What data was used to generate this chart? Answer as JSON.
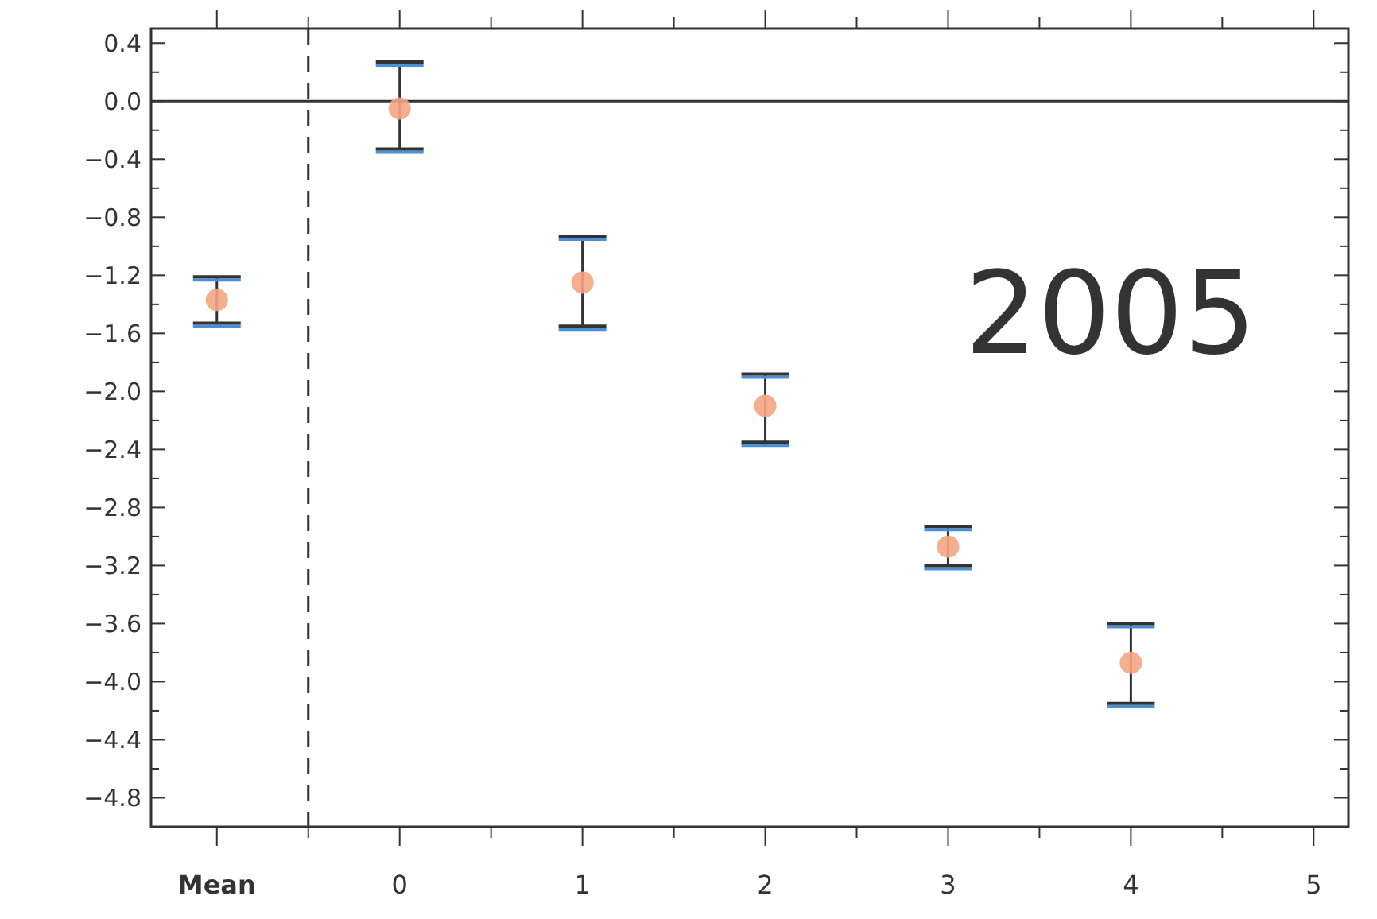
{
  "chart_data": {
    "type": "scatter",
    "x": [
      -1,
      0,
      1,
      2,
      3,
      4
    ],
    "series": [
      {
        "color": "#f4a582",
        "values": [
          -1.37,
          -0.05,
          -1.25,
          -2.1,
          -3.07,
          -3.87
        ],
        "errors": [
          [
            -1.53,
            -1.21
          ],
          [
            -0.33,
            0.27
          ],
          [
            -1.55,
            -0.93
          ],
          [
            -2.35,
            -1.88
          ],
          [
            -3.2,
            -2.93
          ],
          [
            -4.15,
            -3.6
          ]
        ]
      }
    ],
    "marker": "circle",
    "xlim": [
      -1.36,
      5.19
    ],
    "ylim": [
      -5.0,
      0.5
    ],
    "xticks": [
      {
        "value": -1,
        "label": "Mean"
      },
      {
        "value": -0.5,
        "label": null
      },
      0,
      {
        "value": 0.5,
        "label": null
      },
      1,
      {
        "value": 1.5,
        "label": null
      },
      2,
      {
        "value": 2.5,
        "label": null
      },
      3,
      {
        "value": 3.5,
        "label": null
      },
      4,
      {
        "value": 4.5,
        "label": null
      },
      5
    ],
    "yticks": [
      {
        "value": 0.4,
        "label": "0.4"
      },
      {
        "value": 0.2,
        "label": null
      },
      {
        "value": 0,
        "label": "0.0"
      },
      {
        "value": -0.2,
        "label": null
      },
      {
        "value": -0.4,
        "label": "−0.4"
      },
      {
        "value": -0.6,
        "label": null
      },
      {
        "value": -0.8,
        "label": "−0.8"
      },
      {
        "value": -1.0,
        "label": null
      },
      {
        "value": -1.2,
        "label": "−1.2"
      },
      {
        "value": -1.4,
        "label": null
      },
      {
        "value": -1.6,
        "label": "−1.6"
      },
      {
        "value": -1.8,
        "label": null
      },
      {
        "value": -2.0,
        "label": "−2.0"
      },
      {
        "value": -2.2,
        "label": null
      },
      {
        "value": -2.4,
        "label": "−2.4"
      },
      {
        "value": -2.6,
        "label": null
      },
      {
        "value": -2.8,
        "label": "−2.8"
      },
      {
        "value": -3.0,
        "label": null
      },
      {
        "value": -3.2,
        "label": "−3.2"
      },
      {
        "value": -3.4,
        "label": null
      },
      {
        "value": -3.6,
        "label": "−3.6"
      },
      {
        "value": -3.8,
        "label": null
      },
      {
        "value": -4.0,
        "label": "−4.0"
      },
      {
        "value": -4.2,
        "label": null
      },
      {
        "value": -4.4,
        "label": "−4.4"
      },
      {
        "value": -4.6,
        "label": null
      },
      {
        "value": -4.8,
        "label": "−4.8"
      }
    ],
    "ref_lines": [
      {
        "axis": "y",
        "value": 0,
        "line_style": "solid",
        "color": "#333333"
      },
      {
        "axis": "x",
        "value": -0.5,
        "line_style": "dashed",
        "color": "#333333"
      }
    ],
    "annotations": [
      "2005"
    ]
  }
}
